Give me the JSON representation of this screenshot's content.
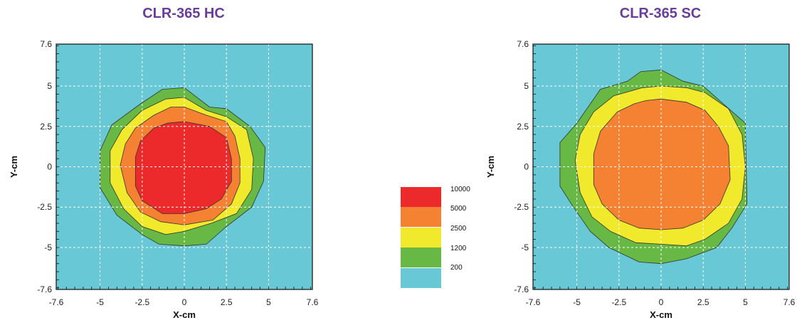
{
  "colors": {
    "bg": "#68c8d6",
    "c200": "#68c8d6",
    "c1200": "#67b845",
    "c2500": "#f0e92c",
    "c5000": "#f58233",
    "c10000": "#ec2a2b",
    "title": "#6a3d9a"
  },
  "legend": {
    "entries": [
      {
        "label": "10000",
        "color": "#ec2a2b"
      },
      {
        "label": "5000",
        "color": "#f58233"
      },
      {
        "label": "2500",
        "color": "#f0e92c"
      },
      {
        "label": "1200",
        "color": "#67b845"
      },
      {
        "label": "200",
        "color": "#68c8d6"
      }
    ]
  },
  "chart_data": [
    {
      "type": "heatmap",
      "title": "CLR-365 HC",
      "xlabel": "X-cm",
      "ylabel": "Y-cm",
      "xlim": [
        -7.6,
        7.6
      ],
      "ylim": [
        -7.6,
        7.6
      ],
      "x_ticks": [
        "-7.6",
        "-5",
        "-2.5",
        "0",
        "2.5",
        "5",
        "7.6"
      ],
      "y_ticks": [
        "7.6",
        "5",
        "2.5",
        "0",
        "-2.5",
        "-5",
        "-7.6"
      ],
      "x_tick_values": [
        -7.6,
        -5,
        -2.5,
        0,
        2.5,
        5,
        7.6
      ],
      "y_tick_values": [
        7.6,
        5,
        2.5,
        0,
        -2.5,
        -5,
        -7.6
      ],
      "grid": true,
      "background_level": "200",
      "contours": [
        {
          "level": "1200",
          "color": "#67b845",
          "points": [
            [
              -1.3,
              4.8
            ],
            [
              0,
              4.9
            ],
            [
              1.5,
              3.7
            ],
            [
              2.5,
              3.6
            ],
            [
              3.9,
              2.5
            ],
            [
              4.8,
              1.2
            ],
            [
              4.7,
              -0.9
            ],
            [
              4.0,
              -2.5
            ],
            [
              2.5,
              -3.7
            ],
            [
              1.3,
              -4.8
            ],
            [
              0,
              -4.9
            ],
            [
              -1.5,
              -4.8
            ],
            [
              -2.5,
              -4.2
            ],
            [
              -4.0,
              -3.0
            ],
            [
              -5.0,
              -1.3
            ],
            [
              -5.0,
              1.0
            ],
            [
              -4.3,
              2.6
            ],
            [
              -2.6,
              3.9
            ]
          ]
        },
        {
          "level": "2500",
          "color": "#f0e92c",
          "points": [
            [
              -1.1,
              4.2
            ],
            [
              0,
              4.3
            ],
            [
              1.3,
              3.5
            ],
            [
              2.5,
              3.1
            ],
            [
              3.7,
              2.3
            ],
            [
              4.1,
              0.5
            ],
            [
              4.0,
              -1.4
            ],
            [
              3.1,
              -2.9
            ],
            [
              1.6,
              -3.5
            ],
            [
              0,
              -4.0
            ],
            [
              -1.1,
              -4.2
            ],
            [
              -2.5,
              -3.7
            ],
            [
              -3.6,
              -2.6
            ],
            [
              -4.4,
              -1.0
            ],
            [
              -4.4,
              1.0
            ],
            [
              -3.7,
              2.3
            ],
            [
              -2.5,
              3.5
            ]
          ]
        },
        {
          "level": "5000",
          "color": "#f58233",
          "points": [
            [
              -0.8,
              3.7
            ],
            [
              0,
              3.7
            ],
            [
              1.3,
              3.2
            ],
            [
              2.5,
              2.8
            ],
            [
              3.0,
              1.9
            ],
            [
              3.3,
              0.5
            ],
            [
              3.3,
              -1.0
            ],
            [
              2.8,
              -2.3
            ],
            [
              1.7,
              -3.3
            ],
            [
              0,
              -3.6
            ],
            [
              -1.4,
              -3.4
            ],
            [
              -2.6,
              -2.8
            ],
            [
              -3.4,
              -1.6
            ],
            [
              -3.8,
              0.1
            ],
            [
              -3.5,
              1.4
            ],
            [
              -2.9,
              2.4
            ],
            [
              -1.8,
              3.2
            ]
          ]
        },
        {
          "level": "10000",
          "color": "#ec2a2b",
          "points": [
            [
              -1.0,
              2.7
            ],
            [
              0,
              2.8
            ],
            [
              1.5,
              2.5
            ],
            [
              2.5,
              1.8
            ],
            [
              2.8,
              0.5
            ],
            [
              2.8,
              -0.9
            ],
            [
              2.2,
              -2.0
            ],
            [
              1.3,
              -2.6
            ],
            [
              0,
              -2.9
            ],
            [
              -1.3,
              -2.9
            ],
            [
              -2.5,
              -2.1
            ],
            [
              -2.9,
              -1.2
            ],
            [
              -2.9,
              0.6
            ],
            [
              -2.6,
              1.6
            ],
            [
              -1.8,
              2.4
            ]
          ]
        }
      ]
    },
    {
      "type": "heatmap",
      "title": "CLR-365 SC",
      "xlabel": "X-cm",
      "ylabel": "Y-cm",
      "xlim": [
        -7.6,
        7.6
      ],
      "ylim": [
        -7.6,
        7.6
      ],
      "x_ticks": [
        "-7.6",
        "-5",
        "-2.5",
        "0",
        "2.5",
        "5",
        "7.6"
      ],
      "y_ticks": [
        "7.6",
        "5",
        "2.5",
        "0",
        "-2.5",
        "-5",
        "-7.6"
      ],
      "x_tick_values": [
        -7.6,
        -5,
        -2.5,
        0,
        2.5,
        5,
        7.6
      ],
      "y_tick_values": [
        7.6,
        5,
        2.5,
        0,
        -2.5,
        -5,
        -7.6
      ],
      "grid": true,
      "background_level": "200",
      "contours": [
        {
          "level": "1200",
          "color": "#67b845",
          "points": [
            [
              -2.0,
              5.3
            ],
            [
              -1.2,
              5.9
            ],
            [
              0,
              6.0
            ],
            [
              1.3,
              5.3
            ],
            [
              2.5,
              5.0
            ],
            [
              3.8,
              3.8
            ],
            [
              5.0,
              2.7
            ],
            [
              5.1,
              -2.3
            ],
            [
              4.2,
              -3.8
            ],
            [
              3.3,
              -5.0
            ],
            [
              1.5,
              -5.7
            ],
            [
              0,
              -6.0
            ],
            [
              -1.3,
              -5.9
            ],
            [
              -3.1,
              -5.0
            ],
            [
              -4.2,
              -4.0
            ],
            [
              -5.2,
              -2.5
            ],
            [
              -6.0,
              -1.2
            ],
            [
              -6.0,
              1.5
            ],
            [
              -5.0,
              2.7
            ],
            [
              -3.6,
              4.8
            ]
          ]
        },
        {
          "level": "2500",
          "color": "#f0e92c",
          "points": [
            [
              -1.1,
              4.9
            ],
            [
              0,
              5.0
            ],
            [
              1.5,
              4.9
            ],
            [
              2.6,
              4.6
            ],
            [
              4.0,
              3.6
            ],
            [
              4.8,
              2.0
            ],
            [
              5.0,
              0
            ],
            [
              4.8,
              -2.0
            ],
            [
              4.0,
              -3.5
            ],
            [
              2.6,
              -4.5
            ],
            [
              1.5,
              -4.9
            ],
            [
              0,
              -4.8
            ],
            [
              -1.5,
              -4.7
            ],
            [
              -3.0,
              -4.0
            ],
            [
              -4.1,
              -3.1
            ],
            [
              -4.8,
              -1.6
            ],
            [
              -5.1,
              0.4
            ],
            [
              -4.8,
              2.0
            ],
            [
              -4.0,
              3.4
            ],
            [
              -2.8,
              4.4
            ]
          ]
        },
        {
          "level": "5000",
          "color": "#f58233",
          "points": [
            [
              -0.9,
              4.1
            ],
            [
              0,
              4.2
            ],
            [
              1.5,
              4.0
            ],
            [
              2.6,
              3.5
            ],
            [
              3.4,
              2.5
            ],
            [
              4.0,
              1.3
            ],
            [
              4.1,
              -0.8
            ],
            [
              3.5,
              -2.3
            ],
            [
              2.5,
              -3.3
            ],
            [
              1.3,
              -3.8
            ],
            [
              0,
              -3.9
            ],
            [
              -1.3,
              -3.8
            ],
            [
              -2.5,
              -3.3
            ],
            [
              -3.5,
              -2.3
            ],
            [
              -4.0,
              -1.1
            ],
            [
              -4.0,
              0.8
            ],
            [
              -3.6,
              2.2
            ],
            [
              -2.6,
              3.4
            ],
            [
              -1.6,
              3.9
            ]
          ]
        }
      ]
    }
  ]
}
